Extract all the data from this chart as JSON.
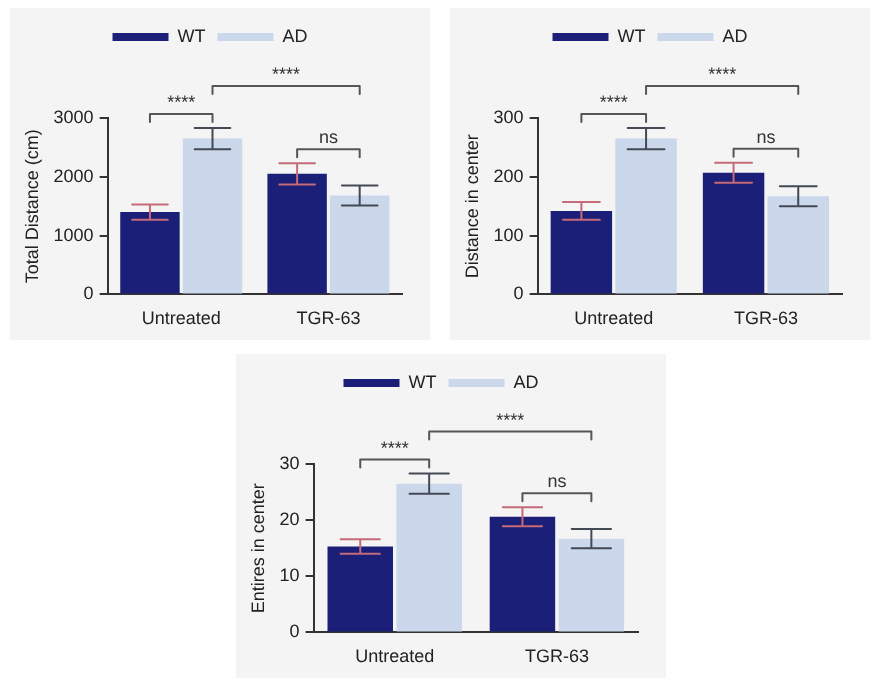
{
  "chart_data": [
    {
      "type": "bar",
      "categories": [
        "Untreated",
        "TGR-63"
      ],
      "ylabel": "Total Distance (cm)",
      "ylim": [
        0,
        3000
      ],
      "yticks": [
        0,
        1000,
        2000,
        3000
      ],
      "legend": "top",
      "grid": false,
      "annotations": [
        "****",
        "****",
        "ns"
      ],
      "series": [
        {
          "name": "WT",
          "color": "#1b1f78",
          "values": [
            1400,
            2050
          ],
          "errors": [
            130,
            180
          ]
        },
        {
          "name": "AD",
          "color": "#cbd7ea",
          "values": [
            2650,
            1680
          ],
          "errors": [
            180,
            170
          ]
        }
      ]
    },
    {
      "type": "bar",
      "categories": [
        "Untreated",
        "TGR-63"
      ],
      "ylabel": "Distance in center",
      "ylim": [
        0,
        300
      ],
      "yticks": [
        0,
        100,
        200,
        300
      ],
      "legend": "top",
      "grid": false,
      "annotations": [
        "****",
        "****",
        "ns"
      ],
      "series": [
        {
          "name": "WT",
          "color": "#1b1f78",
          "values": [
            142,
            207
          ],
          "errors": [
            15,
            17
          ]
        },
        {
          "name": "AD",
          "color": "#cbd7ea",
          "values": [
            265,
            167
          ],
          "errors": [
            18,
            17
          ]
        }
      ]
    },
    {
      "type": "bar",
      "categories": [
        "Untreated",
        "TGR-63"
      ],
      "ylabel": "Entires in center",
      "ylim": [
        0,
        30
      ],
      "yticks": [
        0,
        10,
        20,
        30
      ],
      "legend": "top",
      "grid": false,
      "annotations": [
        "****",
        "****",
        "ns"
      ],
      "series": [
        {
          "name": "WT",
          "color": "#1b1f78",
          "values": [
            15.3,
            20.6
          ],
          "errors": [
            1.3,
            1.7
          ]
        },
        {
          "name": "AD",
          "color": "#cbd7ea",
          "values": [
            26.5,
            16.7
          ],
          "errors": [
            1.8,
            1.7
          ]
        }
      ]
    }
  ]
}
